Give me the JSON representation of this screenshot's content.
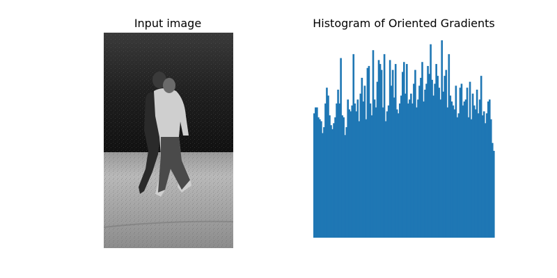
{
  "panels": {
    "left_title": "Input image",
    "right_title": "Histogram of Oriented Gradients"
  },
  "colors": {
    "bar": "#1f77b4",
    "background": "#ffffff"
  },
  "chart_data": [
    {
      "type": "image",
      "title": "Input image",
      "description_tokens": [
        "grayscale",
        "two people walking on grass"
      ]
    },
    {
      "type": "bar",
      "title": "Histogram of Oriented Gradients",
      "xlabel": "",
      "ylabel": "",
      "axes_visible": false,
      "ylim": [
        0,
        1
      ],
      "series": [
        {
          "values": [
            0.63,
            0.66,
            0.66,
            0.61,
            0.6,
            0.59,
            0.53,
            0.56,
            0.68,
            0.76,
            0.72,
            0.62,
            0.57,
            0.55,
            0.58,
            0.61,
            0.68,
            0.75,
            0.68,
            0.91,
            0.62,
            0.61,
            0.52,
            0.56,
            0.7,
            0.65,
            0.64,
            0.67,
            0.93,
            0.68,
            0.64,
            0.7,
            0.59,
            0.73,
            0.81,
            0.69,
            0.77,
            0.6,
            0.86,
            0.87,
            0.68,
            0.62,
            0.95,
            0.7,
            0.66,
            0.79,
            0.9,
            0.88,
            0.85,
            0.66,
            0.93,
            0.59,
            0.64,
            0.67,
            0.9,
            0.77,
            0.85,
            0.71,
            0.88,
            0.65,
            0.63,
            0.68,
            0.72,
            0.84,
            0.89,
            0.73,
            0.88,
            0.68,
            0.7,
            0.73,
            0.68,
            0.78,
            0.85,
            0.66,
            0.7,
            0.77,
            0.81,
            0.89,
            0.69,
            0.75,
            0.78,
            0.87,
            0.83,
            0.98,
            0.8,
            0.72,
            0.78,
            0.88,
            0.82,
            0.76,
            0.7,
            1.0,
            0.74,
            0.82,
            0.85,
            0.66,
            0.93,
            0.72,
            0.69,
            0.67,
            0.65,
            0.77,
            0.61,
            0.63,
            0.76,
            0.78,
            0.67,
            0.69,
            0.7,
            0.76,
            0.61,
            0.79,
            0.6,
            0.73,
            0.67,
            0.65,
            0.75,
            0.63,
            0.7,
            0.82,
            0.62,
            0.64,
            0.58,
            0.63,
            0.69,
            0.7,
            0.6,
            0.48,
            0.44
          ]
        }
      ]
    }
  ]
}
